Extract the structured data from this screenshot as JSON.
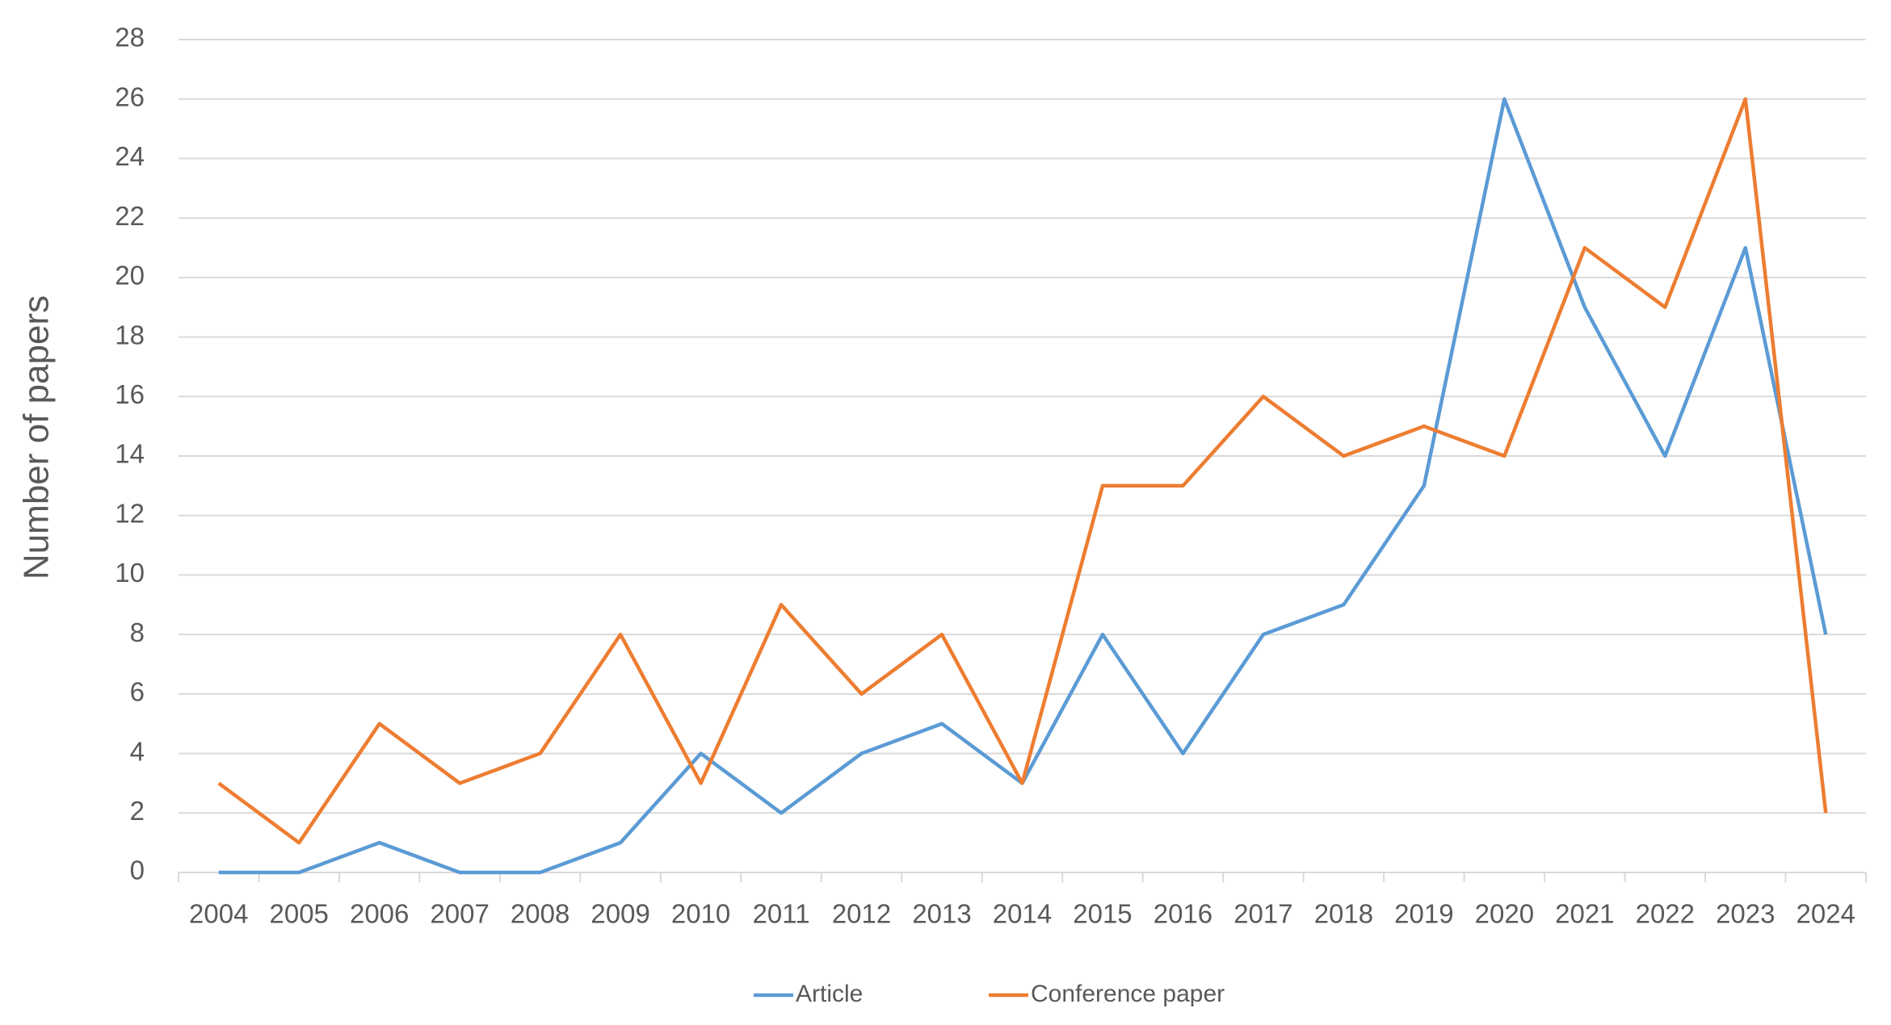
{
  "chart_data": {
    "type": "line",
    "y_label": "Number of papers",
    "categories": [
      "2004",
      "2005",
      "2006",
      "2007",
      "2008",
      "2009",
      "2010",
      "2011",
      "2012",
      "2013",
      "2014",
      "2015",
      "2016",
      "2017",
      "2018",
      "2019",
      "2020",
      "2021",
      "2022",
      "2023",
      "2024"
    ],
    "series": [
      {
        "name": "Article",
        "color": "#5b9bd5",
        "values": [
          0,
          0,
          1,
          0,
          0,
          1,
          4,
          2,
          4,
          5,
          3,
          8,
          4,
          8,
          9,
          13,
          26,
          19,
          14,
          21,
          8
        ]
      },
      {
        "name": "Conference paper",
        "color": "#ed7d31",
        "values": [
          3,
          1,
          5,
          3,
          4,
          8,
          3,
          9,
          6,
          8,
          3,
          13,
          13,
          16,
          14,
          15,
          14,
          21,
          19,
          26,
          2
        ]
      }
    ],
    "ylim": [
      0,
      28
    ],
    "yticks": [
      0,
      2,
      4,
      6,
      8,
      10,
      12,
      14,
      16,
      18,
      20,
      22,
      24,
      26,
      28
    ],
    "grid": true,
    "legend": "bottom"
  }
}
